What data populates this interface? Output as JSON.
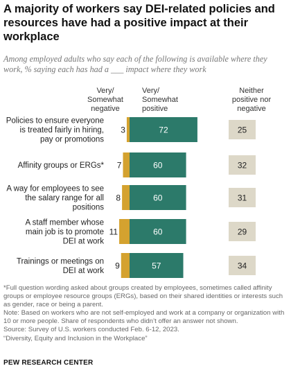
{
  "title": "A majority of workers say DEI-related policies and resources have had a positive impact at their workplace",
  "subtitle": "Among employed adults who say each of the following is available where they work, % saying each has had a ___ impact where they work",
  "chart_data": {
    "type": "bar",
    "categories": [
      "Policies to ensure everyone is treated fairly in hiring, pay or promotions",
      "Affinity groups or ERGs*",
      "A way for employees to see the salary range for all positions",
      "A staff member whose main job is to promote DEI at work",
      "Trainings or meetings on DEI at work"
    ],
    "category_lines": [
      [
        "Policies to ensure everyone",
        "is treated fairly in hiring,",
        "pay or promotions"
      ],
      [
        "Affinity groups or ERGs*"
      ],
      [
        "A way for employees to see",
        "the salary range for all",
        "positions"
      ],
      [
        "A staff member whose",
        "main job is to promote",
        "DEI at work"
      ],
      [
        "Trainings or meetings on",
        "DEI at work"
      ]
    ],
    "series": [
      {
        "name": "Very/ Somewhat negative",
        "values": [
          3,
          7,
          8,
          11,
          9
        ],
        "color": "#d4a22f"
      },
      {
        "name": "Very/ Somewhat positive",
        "values": [
          72,
          60,
          60,
          60,
          57
        ],
        "color": "#2c7a6a"
      },
      {
        "name": "Neither positive nor negative",
        "values": [
          25,
          32,
          31,
          29,
          34
        ],
        "color": "#ddd8c8"
      }
    ],
    "column_headers": {
      "negative": [
        "Very/",
        "Somewhat",
        "negative"
      ],
      "positive": [
        "Very/",
        "Somewhat",
        "positive"
      ],
      "neither": [
        "Neither",
        "positive nor",
        "negative"
      ]
    }
  },
  "notes": {
    "footnote": "*Full question wording asked about groups created by employees, sometimes called affinity groups or employee resource groups (ERGs), based on their shared identities or interests such as gender, race or being a parent.",
    "note": "Note: Based on workers who are not self-employed and work at a company or organization with 10 or more people. Share of respondents who didn’t offer an answer not shown.",
    "source": "Source: Survey of U.S. workers conducted Feb. 6-12, 2023.",
    "report": "“Diversity, Equity and Inclusion in the Workplace”"
  },
  "brand": "PEW RESEARCH CENTER"
}
